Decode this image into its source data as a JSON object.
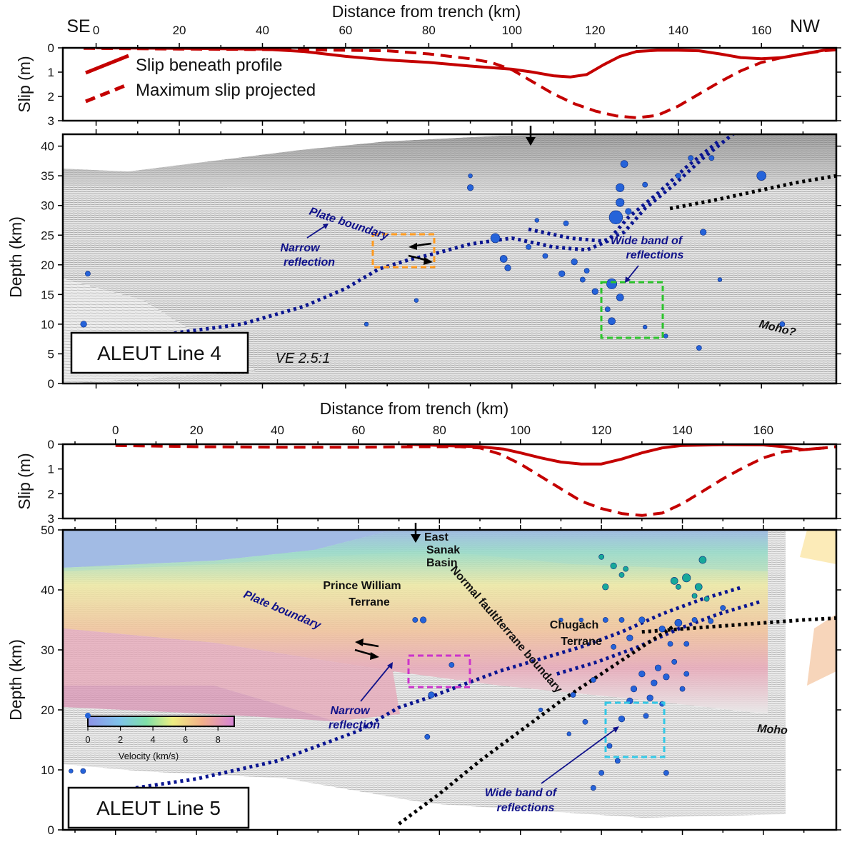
{
  "colors": {
    "slip": "#c40000",
    "boundary": "#0a1591",
    "moho": "#000000",
    "quake": "#2563d9",
    "quake_deep": "#17a89a",
    "box_orange": "#ff9a1f",
    "box_green": "#2bc42b",
    "box_magenta": "#cc33cc",
    "box_cyan": "#33c8e6",
    "arrow": "#000000"
  },
  "chart_data": [
    {
      "type": "line",
      "panel": "line4-slip",
      "xlabel": "Distance from trench (km)",
      "ylabel": "Slip (m)",
      "xlim": [
        -8,
        178
      ],
      "ylim": [
        0,
        3
      ],
      "xticks": [
        0,
        20,
        40,
        60,
        80,
        100,
        120,
        140,
        160
      ],
      "yticks": [
        0,
        1,
        2,
        3
      ],
      "corner_left": "SE",
      "corner_right": "NW",
      "legend": [
        "Slip beneath profile",
        "Maximum slip projected"
      ],
      "series": [
        {
          "name": "Slip beneath profile",
          "style": "solid",
          "x": [
            0,
            20,
            40,
            50,
            60,
            70,
            80,
            90,
            100,
            105,
            110,
            114,
            118,
            122,
            126,
            130,
            135,
            140,
            145,
            150,
            155,
            160,
            165,
            170,
            175,
            178
          ],
          "y": [
            0,
            0.02,
            0.05,
            0.15,
            0.35,
            0.5,
            0.6,
            0.75,
            0.88,
            1.0,
            1.15,
            1.2,
            1.1,
            0.7,
            0.35,
            0.15,
            0.1,
            0.1,
            0.12,
            0.25,
            0.4,
            0.45,
            0.4,
            0.25,
            0.1,
            0.05
          ]
        },
        {
          "name": "Maximum slip projected",
          "style": "dashed",
          "x": [
            -3,
            20,
            50,
            70,
            80,
            90,
            95,
            100,
            105,
            110,
            115,
            120,
            125,
            130,
            135,
            140,
            145,
            150,
            155,
            160,
            165,
            170,
            175,
            178
          ],
          "y": [
            0.02,
            0.05,
            0.08,
            0.12,
            0.25,
            0.45,
            0.6,
            0.9,
            1.4,
            1.9,
            2.3,
            2.6,
            2.8,
            2.88,
            2.78,
            2.4,
            1.9,
            1.4,
            0.95,
            0.6,
            0.4,
            0.25,
            0.12,
            0.08
          ]
        }
      ]
    },
    {
      "type": "scatter",
      "panel": "line4-section",
      "ylabel": "Depth (km)",
      "xlim": [
        -8,
        178
      ],
      "ylim": [
        42,
        0
      ],
      "yticks": [
        0,
        5,
        10,
        15,
        20,
        25,
        30,
        35,
        40
      ],
      "plate_boundary": {
        "x": [
          5,
          20,
          35,
          50,
          60,
          68,
          75,
          82,
          90,
          100,
          110,
          118,
          123,
          128,
          135,
          142,
          150
        ],
        "y": [
          7,
          8.6,
          10,
          13,
          16,
          19.3,
          20.8,
          22,
          23.5,
          24.5,
          23,
          22.5,
          24,
          28,
          32,
          36.5,
          41
        ]
      },
      "moho": {
        "x": [
          138,
          148,
          158,
          168,
          178
        ],
        "y": [
          29.5,
          30.8,
          32.3,
          33.8,
          35
        ]
      },
      "events": [
        {
          "x": -3,
          "y": 10,
          "m": 6
        },
        {
          "x": -2,
          "y": 18.5,
          "m": 5
        },
        {
          "x": 65,
          "y": 10,
          "m": 4
        },
        {
          "x": 98,
          "y": 21,
          "m": 7
        },
        {
          "x": 96,
          "y": 24.5,
          "m": 9
        },
        {
          "x": 99,
          "y": 19.5,
          "m": 6
        },
        {
          "x": 104,
          "y": 23,
          "m": 5
        },
        {
          "x": 108,
          "y": 21.5,
          "m": 5
        },
        {
          "x": 112,
          "y": 18.5,
          "m": 6
        },
        {
          "x": 113,
          "y": 27,
          "m": 5
        },
        {
          "x": 115,
          "y": 20.5,
          "m": 6
        },
        {
          "x": 117,
          "y": 17.5,
          "m": 5
        },
        {
          "x": 120,
          "y": 15.5,
          "m": 6
        },
        {
          "x": 123,
          "y": 12.5,
          "m": 5
        },
        {
          "x": 124,
          "y": 10.5,
          "m": 7
        },
        {
          "x": 124,
          "y": 16.8,
          "m": 10
        },
        {
          "x": 126,
          "y": 14.5,
          "m": 7
        },
        {
          "x": 125,
          "y": 28,
          "m": 13
        },
        {
          "x": 126,
          "y": 30.5,
          "m": 8
        },
        {
          "x": 128,
          "y": 29,
          "m": 6
        },
        {
          "x": 126,
          "y": 33,
          "m": 8
        },
        {
          "x": 127,
          "y": 37,
          "m": 7
        },
        {
          "x": 132,
          "y": 9.5,
          "m": 4
        },
        {
          "x": 137,
          "y": 8,
          "m": 4
        },
        {
          "x": 145,
          "y": 6,
          "m": 5
        },
        {
          "x": 146,
          "y": 25.5,
          "m": 6
        },
        {
          "x": 150,
          "y": 17.5,
          "m": 4
        },
        {
          "x": 148,
          "y": 38,
          "m": 5
        },
        {
          "x": 165,
          "y": 10,
          "m": 5
        },
        {
          "x": 160,
          "y": 35,
          "m": 9
        },
        {
          "x": 90,
          "y": 33,
          "m": 6
        },
        {
          "x": 90,
          "y": 35,
          "m": 4
        },
        {
          "x": 77,
          "y": 14,
          "m": 4
        },
        {
          "x": 118,
          "y": 19,
          "m": 5
        },
        {
          "x": 106,
          "y": 27.5,
          "m": 4
        },
        {
          "x": 140,
          "y": 35,
          "m": 5
        },
        {
          "x": 143,
          "y": 38,
          "m": 5
        },
        {
          "x": 132,
          "y": 33.5,
          "m": 5
        }
      ],
      "arrow_x": 105,
      "labels": {
        "plate_boundary": "Plate boundary",
        "narrow_1": "Narrow",
        "narrow_2": "reflection",
        "wide_1": "Wide band of",
        "wide_2": "reflections",
        "moho": "Moho?",
        "line": "ALEUT Line 4",
        "ve": "VE 2.5:1"
      }
    },
    {
      "type": "line",
      "panel": "line5-slip",
      "xlabel": "Distance from trench (km)",
      "ylabel": "Slip (m)",
      "xlim": [
        -13,
        178
      ],
      "ylim": [
        0,
        3
      ],
      "xticks": [
        0,
        20,
        40,
        60,
        80,
        100,
        120,
        140,
        160
      ],
      "yticks": [
        0,
        1,
        2,
        3
      ],
      "series": [
        {
          "name": "Slip beneath profile",
          "style": "solid",
          "x": [
            72,
            80,
            90,
            96,
            100,
            105,
            110,
            115,
            120,
            125,
            130,
            135,
            140,
            150,
            160,
            165,
            170,
            175
          ],
          "y": [
            0,
            0.05,
            0.1,
            0.2,
            0.35,
            0.55,
            0.72,
            0.8,
            0.8,
            0.6,
            0.35,
            0.15,
            0.05,
            0.02,
            0.03,
            0.1,
            0.22,
            0.15
          ]
        },
        {
          "name": "Maximum slip projected",
          "style": "dashed",
          "x": [
            0,
            20,
            40,
            60,
            75,
            85,
            90,
            95,
            100,
            105,
            110,
            115,
            120,
            125,
            130,
            135,
            140,
            145,
            150,
            155,
            160,
            165,
            170,
            175,
            178
          ],
          "y": [
            0.05,
            0.1,
            0.12,
            0.12,
            0.1,
            0.1,
            0.15,
            0.4,
            0.8,
            1.3,
            1.8,
            2.3,
            2.6,
            2.8,
            2.88,
            2.78,
            2.4,
            1.9,
            1.4,
            0.95,
            0.55,
            0.3,
            0.22,
            0.15,
            0.1
          ]
        }
      ]
    },
    {
      "type": "scatter",
      "panel": "line5-section",
      "ylabel": "Depth (km)",
      "xlim": [
        -13,
        178
      ],
      "ylim": [
        50,
        0
      ],
      "yticks": [
        0,
        10,
        20,
        30,
        40,
        50
      ],
      "plate_boundary": {
        "x": [
          5,
          20,
          40,
          60,
          70,
          78,
          85,
          95,
          105,
          115,
          125,
          135,
          145,
          155
        ],
        "y": [
          7,
          8.5,
          11.5,
          16.5,
          20.4,
          22.2,
          24,
          26.5,
          28.5,
          30.5,
          33,
          36,
          38.5,
          40.5
        ]
      },
      "normal_fault": {
        "x": [
          70,
          80,
          90,
          100,
          110,
          120,
          130,
          138
        ],
        "y": [
          1,
          6,
          11.5,
          16.5,
          21.5,
          26,
          30.5,
          34
        ]
      },
      "moho": {
        "x": [
          130,
          140,
          150,
          160,
          170,
          178
        ],
        "y": [
          33,
          33.5,
          34,
          34.5,
          35,
          35.3
        ]
      },
      "events": [
        {
          "x": -11,
          "y": 9.8,
          "m": 4
        },
        {
          "x": -8,
          "y": 9.8,
          "m": 5
        },
        {
          "x": 77,
          "y": 15.5,
          "m": 5
        },
        {
          "x": 78,
          "y": 22.5,
          "m": 6
        },
        {
          "x": 83,
          "y": 27.5,
          "m": 5
        },
        {
          "x": 74,
          "y": 35,
          "m": 5
        },
        {
          "x": 76,
          "y": 35,
          "m": 6
        },
        {
          "x": 105,
          "y": 20,
          "m": 4
        },
        {
          "x": 112,
          "y": 16,
          "m": 4
        },
        {
          "x": 113,
          "y": 22.5,
          "m": 5
        },
        {
          "x": 116,
          "y": 18,
          "m": 5
        },
        {
          "x": 118,
          "y": 25,
          "m": 5
        },
        {
          "x": 118,
          "y": 7,
          "m": 5
        },
        {
          "x": 120,
          "y": 9.5,
          "m": 5
        },
        {
          "x": 122,
          "y": 14,
          "m": 5
        },
        {
          "x": 124,
          "y": 11.5,
          "m": 5
        },
        {
          "x": 125,
          "y": 18.5,
          "m": 6
        },
        {
          "x": 127,
          "y": 21.5,
          "m": 6
        },
        {
          "x": 128,
          "y": 23.5,
          "m": 6
        },
        {
          "x": 130,
          "y": 26,
          "m": 6
        },
        {
          "x": 131,
          "y": 19,
          "m": 5
        },
        {
          "x": 132,
          "y": 22,
          "m": 6
        },
        {
          "x": 133,
          "y": 24.5,
          "m": 6
        },
        {
          "x": 134,
          "y": 27,
          "m": 6
        },
        {
          "x": 135,
          "y": 21,
          "m": 5
        },
        {
          "x": 136,
          "y": 9.5,
          "m": 5
        },
        {
          "x": 136,
          "y": 25.5,
          "m": 6
        },
        {
          "x": 138,
          "y": 28,
          "m": 5
        },
        {
          "x": 140,
          "y": 23.5,
          "m": 5
        },
        {
          "x": 141,
          "y": 26,
          "m": 5
        },
        {
          "x": 127,
          "y": 32,
          "m": 6
        },
        {
          "x": 130,
          "y": 35,
          "m": 6
        },
        {
          "x": 135,
          "y": 33.5,
          "m": 6
        },
        {
          "x": 139,
          "y": 34.5,
          "m": 7
        },
        {
          "x": 141,
          "y": 31,
          "m": 5
        },
        {
          "x": 143,
          "y": 35,
          "m": 5
        },
        {
          "x": 110,
          "y": 35,
          "m": 4
        },
        {
          "x": 115,
          "y": 35,
          "m": 4
        },
        {
          "x": 121,
          "y": 35,
          "m": 5
        },
        {
          "x": 123,
          "y": 30.5,
          "m": 5
        },
        {
          "x": 147,
          "y": 34.8,
          "m": 5
        },
        {
          "x": 150,
          "y": 37,
          "m": 5
        },
        {
          "x": 125,
          "y": 35,
          "m": 5
        },
        {
          "x": 137,
          "y": 31,
          "m": 5
        }
      ],
      "events_deep": [
        {
          "x": 121,
          "y": 40.5,
          "m": 6
        },
        {
          "x": 123,
          "y": 44,
          "m": 6
        },
        {
          "x": 125,
          "y": 42.5,
          "m": 5
        },
        {
          "x": 126,
          "y": 43.5,
          "m": 5
        },
        {
          "x": 120,
          "y": 45.5,
          "m": 5
        },
        {
          "x": 138,
          "y": 41.5,
          "m": 7
        },
        {
          "x": 141,
          "y": 42,
          "m": 8
        },
        {
          "x": 144,
          "y": 40.5,
          "m": 7
        },
        {
          "x": 145,
          "y": 45,
          "m": 7
        },
        {
          "x": 143,
          "y": 39,
          "m": 5
        },
        {
          "x": 146,
          "y": 38.5,
          "m": 5
        },
        {
          "x": 139,
          "y": 40.5,
          "m": 5
        }
      ],
      "arrow_x": 77,
      "labels": {
        "basin_1": "East",
        "basin_2": "Sanak",
        "basin_3": "Basin",
        "pw_1": "Prince William",
        "pw_2": "Terrane",
        "chugach_1": "Chugach",
        "chugach_2": "Terrane",
        "plate_boundary": "Plate boundary",
        "normal_fault": "Normal fault/terrane boundary",
        "narrow_1": "Narrow",
        "narrow_2": "reflection",
        "wide_1": "Wide band of",
        "wide_2": "reflections",
        "moho": "Moho",
        "line": "ALEUT Line 5"
      },
      "colorbar": {
        "label": "Velocity (km/s)",
        "ticks": [
          "0",
          "2",
          "4",
          "6",
          "8"
        ],
        "range": [
          0,
          9
        ]
      }
    }
  ]
}
